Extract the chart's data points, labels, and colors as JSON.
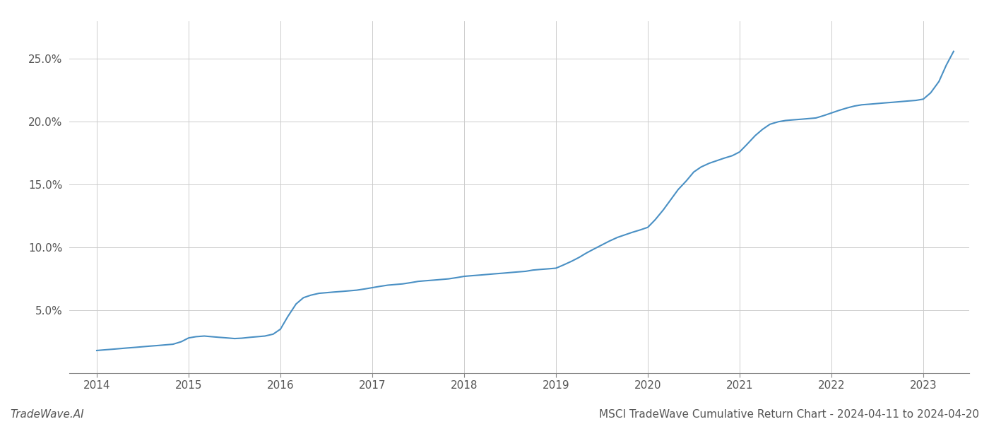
{
  "title": "MSCI TradeWave Cumulative Return Chart - 2024-04-11 to 2024-04-20",
  "watermark": "TradeWave.AI",
  "line_color": "#4a90c4",
  "background_color": "#ffffff",
  "grid_color": "#cccccc",
  "x_values": [
    2014.0,
    2014.08,
    2014.17,
    2014.25,
    2014.33,
    2014.42,
    2014.5,
    2014.58,
    2014.67,
    2014.75,
    2014.83,
    2014.92,
    2015.0,
    2015.08,
    2015.17,
    2015.25,
    2015.33,
    2015.42,
    2015.5,
    2015.58,
    2015.67,
    2015.75,
    2015.83,
    2015.92,
    2016.0,
    2016.08,
    2016.17,
    2016.25,
    2016.33,
    2016.42,
    2016.5,
    2016.58,
    2016.67,
    2016.75,
    2016.83,
    2016.92,
    2017.0,
    2017.08,
    2017.17,
    2017.25,
    2017.33,
    2017.42,
    2017.5,
    2017.58,
    2017.67,
    2017.75,
    2017.83,
    2017.92,
    2018.0,
    2018.08,
    2018.17,
    2018.25,
    2018.33,
    2018.42,
    2018.5,
    2018.58,
    2018.67,
    2018.75,
    2018.83,
    2018.92,
    2019.0,
    2019.08,
    2019.17,
    2019.25,
    2019.33,
    2019.42,
    2019.5,
    2019.58,
    2019.67,
    2019.75,
    2019.83,
    2019.92,
    2020.0,
    2020.08,
    2020.17,
    2020.25,
    2020.33,
    2020.42,
    2020.5,
    2020.58,
    2020.67,
    2020.75,
    2020.83,
    2020.92,
    2021.0,
    2021.08,
    2021.17,
    2021.25,
    2021.33,
    2021.42,
    2021.5,
    2021.58,
    2021.67,
    2021.75,
    2021.83,
    2021.92,
    2022.0,
    2022.08,
    2022.17,
    2022.25,
    2022.33,
    2022.42,
    2022.5,
    2022.58,
    2022.67,
    2022.75,
    2022.83,
    2022.92,
    2023.0,
    2023.08,
    2023.17,
    2023.25,
    2023.33
  ],
  "y_values": [
    1.8,
    1.85,
    1.9,
    1.95,
    2.0,
    2.05,
    2.1,
    2.15,
    2.2,
    2.25,
    2.3,
    2.5,
    2.8,
    2.9,
    2.95,
    2.9,
    2.85,
    2.8,
    2.75,
    2.78,
    2.85,
    2.9,
    2.95,
    3.1,
    3.5,
    4.5,
    5.5,
    6.0,
    6.2,
    6.35,
    6.4,
    6.45,
    6.5,
    6.55,
    6.6,
    6.7,
    6.8,
    6.9,
    7.0,
    7.05,
    7.1,
    7.2,
    7.3,
    7.35,
    7.4,
    7.45,
    7.5,
    7.6,
    7.7,
    7.75,
    7.8,
    7.85,
    7.9,
    7.95,
    8.0,
    8.05,
    8.1,
    8.2,
    8.25,
    8.3,
    8.35,
    8.6,
    8.9,
    9.2,
    9.55,
    9.9,
    10.2,
    10.5,
    10.8,
    11.0,
    11.2,
    11.4,
    11.6,
    12.2,
    13.0,
    13.8,
    14.6,
    15.3,
    16.0,
    16.4,
    16.7,
    16.9,
    17.1,
    17.3,
    17.6,
    18.2,
    18.9,
    19.4,
    19.8,
    20.0,
    20.1,
    20.15,
    20.2,
    20.25,
    20.3,
    20.5,
    20.7,
    20.9,
    21.1,
    21.25,
    21.35,
    21.4,
    21.45,
    21.5,
    21.55,
    21.6,
    21.65,
    21.7,
    21.8,
    22.3,
    23.2,
    24.5,
    25.6
  ],
  "yticks": [
    5.0,
    10.0,
    15.0,
    20.0,
    25.0
  ],
  "ylim": [
    0,
    28
  ],
  "xlim": [
    2013.7,
    2023.5
  ],
  "xticks": [
    2014,
    2015,
    2016,
    2017,
    2018,
    2019,
    2020,
    2021,
    2022,
    2023
  ],
  "title_fontsize": 11,
  "watermark_fontsize": 11,
  "tick_fontsize": 11,
  "line_width": 1.5,
  "spine_color": "#888888"
}
